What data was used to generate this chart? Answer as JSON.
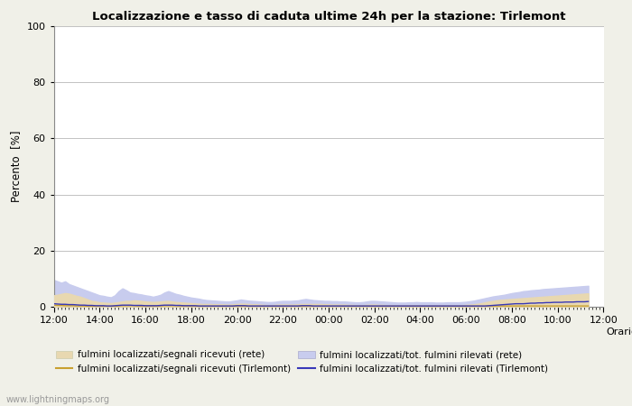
{
  "title": "Localizzazione e tasso di caduta ultime 24h per la stazione: Tirlemont",
  "ylabel": "Percento  [%]",
  "xlabel": "Orario",
  "xlim": [
    0,
    144
  ],
  "ylim": [
    0,
    100
  ],
  "yticks": [
    0,
    20,
    40,
    60,
    80,
    100
  ],
  "xtick_labels": [
    "12:00",
    "14:00",
    "16:00",
    "18:00",
    "20:00",
    "22:00",
    "00:00",
    "02:00",
    "04:00",
    "06:00",
    "08:00",
    "10:00",
    "12:00"
  ],
  "xtick_positions": [
    0,
    12,
    24,
    36,
    48,
    60,
    72,
    84,
    96,
    108,
    120,
    132,
    144
  ],
  "color_fill_net_loc": "#e8d8b0",
  "color_fill_net_tot": "#c8ccee",
  "color_line_station_loc": "#c8a030",
  "color_line_station_tot": "#3838b8",
  "bg_color": "#f0f0e8",
  "plot_bg": "#ffffff",
  "watermark": "www.lightningmaps.org",
  "legend_labels": [
    "fulmini localizzati/segnali ricevuti (rete)",
    "fulmini localizzati/segnali ricevuti (Tirlemont)",
    "fulmini localizzati/tot. fulmini rilevati (rete)",
    "fulmini localizzati/tot. fulmini rilevati (Tirlemont)"
  ],
  "net_loc_values": [
    4.0,
    4.2,
    4.5,
    4.8,
    4.6,
    4.2,
    3.8,
    3.5,
    3.0,
    2.5,
    2.0,
    1.8,
    1.5,
    1.4,
    1.3,
    1.2,
    1.4,
    1.6,
    1.8,
    2.0,
    2.0,
    2.2,
    2.1,
    2.0,
    1.8,
    1.7,
    1.6,
    1.7,
    1.8,
    1.9,
    2.0,
    1.8,
    1.6,
    1.5,
    1.4,
    1.3,
    1.2,
    1.1,
    1.0,
    0.9,
    0.9,
    0.9,
    0.8,
    0.8,
    0.8,
    0.7,
    0.7,
    0.8,
    0.9,
    1.0,
    1.0,
    0.9,
    0.8,
    0.8,
    0.7,
    0.6,
    0.5,
    0.5,
    0.6,
    0.7,
    0.7,
    0.7,
    0.7,
    0.7,
    0.8,
    0.9,
    0.9,
    0.9,
    0.9,
    0.9,
    0.9,
    0.8,
    0.8,
    0.7,
    0.7,
    0.7,
    0.7,
    0.6,
    0.6,
    0.5,
    0.5,
    0.5,
    0.6,
    0.7,
    0.7,
    0.6,
    0.6,
    0.5,
    0.5,
    0.5,
    0.4,
    0.4,
    0.4,
    0.5,
    0.5,
    0.5,
    0.4,
    0.4,
    0.4,
    0.4,
    0.4,
    0.4,
    0.4,
    0.4,
    0.4,
    0.4,
    0.4,
    0.5,
    0.6,
    0.7,
    0.8,
    1.0,
    1.2,
    1.5,
    1.8,
    2.0,
    2.2,
    2.4,
    2.5,
    2.6,
    2.7,
    2.8,
    2.9,
    3.0,
    3.1,
    3.2,
    3.3,
    3.4,
    3.5,
    3.6,
    3.7,
    3.8,
    3.9,
    4.0,
    4.1,
    4.2,
    4.3,
    4.4,
    4.5,
    4.6,
    4.7
  ],
  "net_tot_values": [
    9.5,
    9.0,
    8.5,
    9.0,
    8.0,
    7.5,
    7.0,
    6.5,
    6.0,
    5.5,
    5.0,
    4.5,
    4.0,
    3.8,
    3.5,
    3.3,
    4.0,
    5.5,
    6.5,
    5.8,
    5.0,
    4.8,
    4.5,
    4.3,
    4.0,
    3.8,
    3.5,
    3.8,
    4.2,
    5.0,
    5.5,
    5.0,
    4.5,
    4.2,
    3.8,
    3.5,
    3.2,
    3.0,
    2.8,
    2.5,
    2.3,
    2.2,
    2.1,
    2.0,
    1.9,
    1.8,
    1.8,
    2.0,
    2.2,
    2.5,
    2.3,
    2.1,
    2.0,
    1.9,
    1.8,
    1.7,
    1.6,
    1.6,
    1.7,
    1.9,
    2.0,
    2.0,
    2.0,
    2.1,
    2.2,
    2.5,
    2.7,
    2.5,
    2.3,
    2.2,
    2.1,
    2.0,
    2.0,
    1.9,
    1.9,
    1.8,
    1.8,
    1.7,
    1.6,
    1.5,
    1.5,
    1.6,
    1.8,
    2.0,
    2.0,
    1.9,
    1.8,
    1.7,
    1.6,
    1.5,
    1.4,
    1.4,
    1.4,
    1.5,
    1.5,
    1.6,
    1.5,
    1.5,
    1.5,
    1.5,
    1.4,
    1.4,
    1.4,
    1.5,
    1.5,
    1.5,
    1.5,
    1.6,
    1.7,
    1.9,
    2.1,
    2.4,
    2.7,
    3.0,
    3.3,
    3.6,
    3.8,
    4.0,
    4.2,
    4.5,
    4.8,
    5.0,
    5.2,
    5.5,
    5.6,
    5.8,
    5.9,
    6.0,
    6.2,
    6.3,
    6.4,
    6.5,
    6.6,
    6.7,
    6.8,
    6.9,
    7.0,
    7.1,
    7.2,
    7.3,
    7.4
  ],
  "station_loc_values": [
    0.5,
    0.4,
    0.4,
    0.3,
    0.3,
    0.3,
    0.2,
    0.2,
    0.2,
    0.1,
    0.1,
    0.1,
    0.1,
    0.1,
    0.1,
    0.1,
    0.1,
    0.2,
    0.3,
    0.3,
    0.3,
    0.3,
    0.2,
    0.2,
    0.2,
    0.2,
    0.2,
    0.2,
    0.2,
    0.3,
    0.3,
    0.3,
    0.3,
    0.2,
    0.2,
    0.2,
    0.2,
    0.2,
    0.1,
    0.1,
    0.1,
    0.1,
    0.1,
    0.1,
    0.1,
    0.1,
    0.1,
    0.1,
    0.2,
    0.2,
    0.2,
    0.1,
    0.1,
    0.1,
    0.1,
    0.1,
    0.1,
    0.1,
    0.1,
    0.1,
    0.1,
    0.1,
    0.1,
    0.1,
    0.1,
    0.2,
    0.2,
    0.2,
    0.1,
    0.1,
    0.1,
    0.1,
    0.1,
    0.1,
    0.1,
    0.1,
    0.1,
    0.1,
    0.1,
    0.1,
    0.1,
    0.1,
    0.1,
    0.1,
    0.1,
    0.1,
    0.1,
    0.1,
    0.1,
    0.1,
    0.1,
    0.1,
    0.1,
    0.1,
    0.1,
    0.1,
    0.1,
    0.1,
    0.1,
    0.1,
    0.1,
    0.1,
    0.1,
    0.1,
    0.1,
    0.1,
    0.1,
    0.1,
    0.1,
    0.1,
    0.1,
    0.1,
    0.1,
    0.1,
    0.2,
    0.2,
    0.2,
    0.2,
    0.2,
    0.2,
    0.2,
    0.2,
    0.2,
    0.2,
    0.2,
    0.2,
    0.2,
    0.2,
    0.2,
    0.2,
    0.2,
    0.2,
    0.2,
    0.2,
    0.2,
    0.2,
    0.2,
    0.2,
    0.2,
    0.2,
    0.2
  ],
  "station_tot_values": [
    1.0,
    0.9,
    0.8,
    0.8,
    0.7,
    0.7,
    0.6,
    0.5,
    0.5,
    0.4,
    0.4,
    0.3,
    0.3,
    0.3,
    0.2,
    0.2,
    0.3,
    0.4,
    0.5,
    0.5,
    0.5,
    0.4,
    0.4,
    0.4,
    0.3,
    0.3,
    0.3,
    0.3,
    0.4,
    0.5,
    0.5,
    0.5,
    0.4,
    0.4,
    0.3,
    0.3,
    0.3,
    0.3,
    0.2,
    0.2,
    0.2,
    0.2,
    0.2,
    0.2,
    0.2,
    0.2,
    0.2,
    0.2,
    0.3,
    0.3,
    0.3,
    0.2,
    0.2,
    0.2,
    0.2,
    0.2,
    0.2,
    0.2,
    0.2,
    0.2,
    0.2,
    0.2,
    0.2,
    0.2,
    0.2,
    0.3,
    0.3,
    0.3,
    0.2,
    0.2,
    0.2,
    0.2,
    0.2,
    0.2,
    0.2,
    0.2,
    0.2,
    0.2,
    0.2,
    0.2,
    0.2,
    0.2,
    0.2,
    0.2,
    0.2,
    0.2,
    0.2,
    0.2,
    0.2,
    0.2,
    0.2,
    0.2,
    0.2,
    0.2,
    0.2,
    0.2,
    0.2,
    0.2,
    0.2,
    0.2,
    0.2,
    0.2,
    0.2,
    0.2,
    0.2,
    0.2,
    0.2,
    0.2,
    0.2,
    0.2,
    0.2,
    0.2,
    0.2,
    0.2,
    0.3,
    0.4,
    0.5,
    0.6,
    0.7,
    0.8,
    0.9,
    1.0,
    1.0,
    1.0,
    1.1,
    1.2,
    1.2,
    1.3,
    1.3,
    1.4,
    1.4,
    1.5,
    1.5,
    1.5,
    1.6,
    1.6,
    1.6,
    1.7,
    1.7,
    1.7,
    1.8
  ]
}
